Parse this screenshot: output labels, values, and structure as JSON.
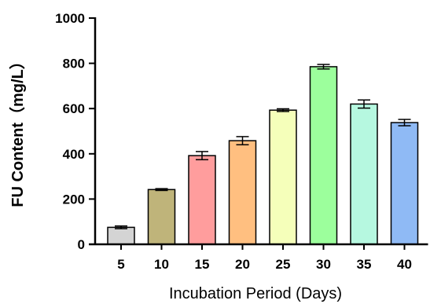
{
  "chart_data": {
    "type": "bar",
    "title": "",
    "xlabel": "Incubation Period (Days)",
    "ylabel": "FU Content（mg/L）",
    "categories": [
      "5",
      "10",
      "15",
      "20",
      "25",
      "30",
      "35",
      "40"
    ],
    "values": [
      75,
      242,
      392,
      458,
      593,
      785,
      620,
      538
    ],
    "errors": [
      6,
      4,
      18,
      18,
      6,
      10,
      18,
      14
    ],
    "ylim": [
      0,
      1000
    ],
    "yticks": [
      "0",
      "200",
      "400",
      "600",
      "800",
      "1000"
    ],
    "grid": false,
    "legend": "none",
    "bar_colors": [
      "#d4d4d4",
      "#bfb47a",
      "#ff9d9d",
      "#ffbf80",
      "#f5ffba",
      "#9cff9c",
      "#b6f8e0",
      "#8fbaf5"
    ],
    "edge_color": "#000000"
  }
}
